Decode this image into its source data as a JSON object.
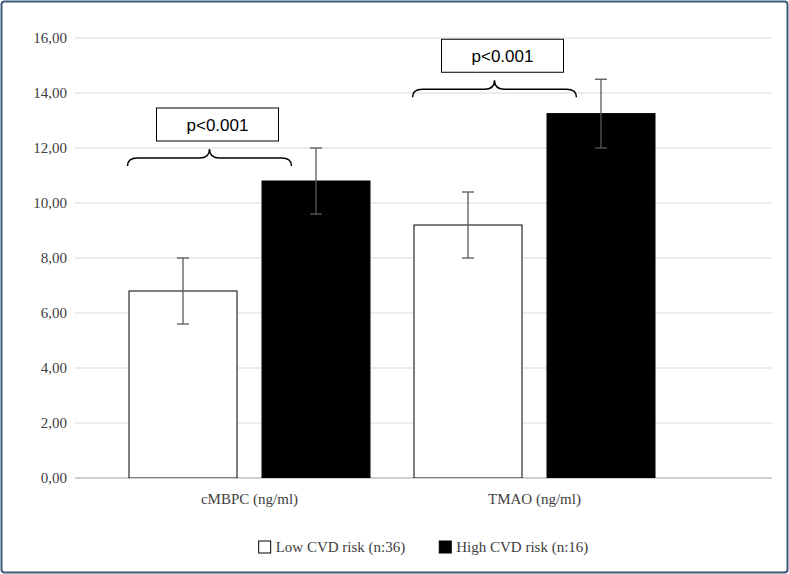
{
  "chart_data": {
    "type": "bar",
    "categories": [
      "cMBPC (ng/ml)",
      "TMAO (ng/ml)"
    ],
    "series": [
      {
        "name": "Low CVD risk (n:36)",
        "color": "#ffffff",
        "values": [
          6.8,
          9.2
        ],
        "errors": [
          1.2,
          1.2
        ]
      },
      {
        "name": "High CVD risk (n:16)",
        "color": "#000000",
        "values": [
          10.8,
          13.25
        ],
        "errors": [
          1.2,
          1.25
        ]
      }
    ],
    "ylim": [
      0,
      16
    ],
    "yticks": [
      {
        "value": 0,
        "label": "0,00"
      },
      {
        "value": 2,
        "label": "2,00"
      },
      {
        "value": 4,
        "label": "4,00"
      },
      {
        "value": 6,
        "label": "6,00"
      },
      {
        "value": 8,
        "label": "8,00"
      },
      {
        "value": 10,
        "label": "10,00"
      },
      {
        "value": 12,
        "label": "12,00"
      },
      {
        "value": 14,
        "label": "14,00"
      },
      {
        "value": 16,
        "label": "16,00"
      }
    ],
    "grid": true,
    "legend": "bottom",
    "annotations": [
      {
        "text": "p<0.001",
        "category": "cMBPC (ng/ml)"
      },
      {
        "text": "p<0.001",
        "category": "TMAO (ng/ml)"
      }
    ]
  }
}
